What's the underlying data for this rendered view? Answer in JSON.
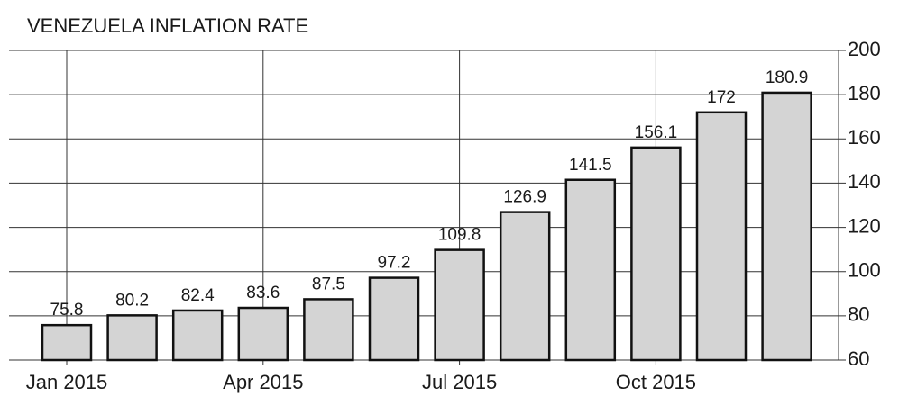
{
  "chart_data": {
    "type": "bar",
    "title": "VENEZUELA INFLATION RATE",
    "categories": [
      "Jan 2015",
      null,
      null,
      "Apr 2015",
      null,
      null,
      "Jul 2015",
      null,
      null,
      "Oct 2015",
      null,
      null
    ],
    "values": [
      75.8,
      80.2,
      82.4,
      83.6,
      87.5,
      97.2,
      109.8,
      126.9,
      141.5,
      156.1,
      172,
      180.9
    ],
    "color": "#d4d4d4",
    "ylim": [
      60,
      200
    ],
    "yticks": [
      60,
      80,
      100,
      120,
      140,
      160,
      180,
      200
    ],
    "grid": true
  }
}
